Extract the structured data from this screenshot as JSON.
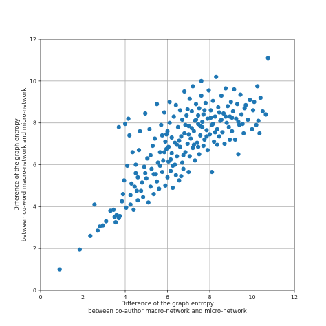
{
  "chart_data": {
    "type": "scatter",
    "xlabel": [
      "Difference of the graph entropy",
      "between co-author macro-network and micro-network"
    ],
    "ylabel": [
      "Difference of the graph entropy",
      "between co-word macro-network and micro-network"
    ],
    "xlim": [
      0,
      12
    ],
    "ylim": [
      0,
      12
    ],
    "xticks": [
      0,
      2,
      4,
      6,
      8,
      10,
      12
    ],
    "yticks": [
      0,
      2,
      4,
      6,
      8,
      10,
      12
    ],
    "grid": true,
    "point_color": "#1f77b4",
    "points": [
      [
        0.9,
        1.0
      ],
      [
        1.85,
        1.95
      ],
      [
        2.35,
        2.6
      ],
      [
        2.55,
        4.1
      ],
      [
        2.7,
        2.85
      ],
      [
        2.8,
        3.05
      ],
      [
        2.95,
        3.1
      ],
      [
        3.1,
        3.3
      ],
      [
        3.3,
        3.8
      ],
      [
        3.45,
        3.85
      ],
      [
        3.5,
        3.5
      ],
      [
        3.55,
        3.25
      ],
      [
        3.6,
        3.6
      ],
      [
        3.7,
        3.45
      ],
      [
        3.75,
        3.55
      ],
      [
        3.7,
        7.8
      ],
      [
        3.85,
        4.25
      ],
      [
        3.9,
        4.6
      ],
      [
        3.95,
        5.25
      ],
      [
        4.0,
        7.95
      ],
      [
        4.05,
        3.95
      ],
      [
        4.1,
        5.95
      ],
      [
        4.15,
        8.2
      ],
      [
        4.2,
        7.4
      ],
      [
        4.25,
        4.55
      ],
      [
        4.3,
        5.1
      ],
      [
        4.35,
        6.6
      ],
      [
        4.4,
        3.85
      ],
      [
        4.45,
        4.95
      ],
      [
        4.5,
        5.6
      ],
      [
        4.5,
        6.0
      ],
      [
        4.6,
        4.3
      ],
      [
        4.6,
        5.4
      ],
      [
        4.65,
        6.7
      ],
      [
        4.7,
        7.6
      ],
      [
        4.75,
        4.75
      ],
      [
        4.8,
        5.15
      ],
      [
        4.85,
        4.45
      ],
      [
        4.9,
        5.9
      ],
      [
        4.95,
        8.45
      ],
      [
        5.0,
        5.35
      ],
      [
        5.05,
        6.3
      ],
      [
        5.1,
        4.2
      ],
      [
        5.15,
        7.7
      ],
      [
        5.2,
        4.95
      ],
      [
        5.25,
        5.8
      ],
      [
        5.3,
        6.9
      ],
      [
        5.35,
        4.6
      ],
      [
        5.4,
        7.25
      ],
      [
        5.45,
        5.55
      ],
      [
        5.5,
        5.2
      ],
      [
        5.5,
        8.9
      ],
      [
        5.55,
        6.1
      ],
      [
        5.6,
        4.85
      ],
      [
        5.65,
        6.6
      ],
      [
        5.7,
        7.9
      ],
      [
        5.75,
        5.65
      ],
      [
        5.8,
        6.2
      ],
      [
        5.85,
        8.5
      ],
      [
        5.9,
        5.0
      ],
      [
        5.9,
        7.1
      ],
      [
        5.95,
        6.75
      ],
      [
        6.0,
        5.4
      ],
      [
        6.0,
        7.6
      ],
      [
        6.05,
        6.15
      ],
      [
        6.1,
        8.0
      ],
      [
        6.1,
        9.0
      ],
      [
        6.15,
        5.7
      ],
      [
        6.2,
        6.55
      ],
      [
        6.2,
        7.3
      ],
      [
        6.25,
        4.9
      ],
      [
        6.3,
        8.3
      ],
      [
        6.35,
        6.0
      ],
      [
        6.35,
        7.05
      ],
      [
        6.4,
        5.5
      ],
      [
        6.4,
        8.85
      ],
      [
        6.45,
        6.4
      ],
      [
        6.5,
        7.8
      ],
      [
        6.55,
        5.25
      ],
      [
        6.6,
        6.85
      ],
      [
        6.6,
        8.6
      ],
      [
        6.65,
        7.35
      ],
      [
        6.7,
        6.1
      ],
      [
        6.7,
        8.15
      ],
      [
        6.75,
        5.8
      ],
      [
        6.8,
        7.5
      ],
      [
        6.8,
        9.5
      ],
      [
        6.85,
        6.6
      ],
      [
        6.9,
        8.35
      ],
      [
        6.95,
        7.0
      ],
      [
        7.0,
        5.65
      ],
      [
        7.0,
        7.85
      ],
      [
        7.05,
        6.4
      ],
      [
        7.05,
        9.15
      ],
      [
        7.1,
        7.25
      ],
      [
        7.15,
        8.55
      ],
      [
        7.2,
        6.8
      ],
      [
        7.2,
        9.75
      ],
      [
        7.25,
        7.6
      ],
      [
        7.3,
        6.2
      ],
      [
        7.3,
        8.1
      ],
      [
        7.35,
        8.9
      ],
      [
        7.4,
        7.05
      ],
      [
        7.45,
        7.95
      ],
      [
        7.5,
        6.5
      ],
      [
        7.5,
        8.7
      ],
      [
        7.55,
        7.4
      ],
      [
        7.6,
        9.3
      ],
      [
        7.6,
        10.0
      ],
      [
        7.65,
        7.8
      ],
      [
        7.7,
        6.9
      ],
      [
        7.7,
        8.4
      ],
      [
        7.75,
        7.2
      ],
      [
        7.8,
        8.95
      ],
      [
        7.85,
        7.65
      ],
      [
        7.9,
        8.2
      ],
      [
        7.9,
        6.7
      ],
      [
        7.95,
        9.55
      ],
      [
        8.0,
        7.45
      ],
      [
        8.05,
        8.6
      ],
      [
        8.1,
        5.65
      ],
      [
        8.1,
        7.9
      ],
      [
        8.15,
        9.05
      ],
      [
        8.2,
        7.1
      ],
      [
        8.25,
        8.3
      ],
      [
        8.3,
        10.2
      ],
      [
        8.35,
        7.7
      ],
      [
        8.4,
        8.75
      ],
      [
        8.45,
        7.35
      ],
      [
        8.5,
        8.1
      ],
      [
        8.55,
        9.3
      ],
      [
        8.6,
        7.55
      ],
      [
        8.65,
        8.45
      ],
      [
        8.7,
        7.0
      ],
      [
        8.75,
        9.65
      ],
      [
        8.8,
        8.0
      ],
      [
        8.85,
        8.8
      ],
      [
        8.9,
        7.8
      ],
      [
        8.95,
        8.3
      ],
      [
        9.0,
        9.0
      ],
      [
        9.05,
        7.6
      ],
      [
        9.1,
        8.55
      ],
      [
        9.15,
        9.6
      ],
      [
        9.2,
        7.2
      ],
      [
        9.25,
        8.2
      ],
      [
        9.3,
        8.9
      ],
      [
        9.35,
        6.5
      ],
      [
        9.4,
        7.9
      ],
      [
        9.45,
        9.35
      ],
      [
        9.5,
        8.4
      ],
      [
        9.6,
        7.5
      ],
      [
        9.7,
        8.85
      ],
      [
        9.8,
        8.15
      ],
      [
        9.9,
        9.1
      ],
      [
        10.0,
        7.7
      ],
      [
        10.05,
        8.6
      ],
      [
        10.1,
        9.0
      ],
      [
        10.2,
        7.9
      ],
      [
        10.25,
        9.75
      ],
      [
        10.3,
        8.1
      ],
      [
        10.35,
        7.5
      ],
      [
        10.4,
        9.2
      ],
      [
        10.5,
        8.55
      ],
      [
        10.65,
        8.4
      ],
      [
        10.75,
        11.1
      ],
      [
        5.2,
        6.45
      ],
      [
        5.75,
        7.4
      ],
      [
        6.25,
        5.95
      ],
      [
        6.55,
        7.15
      ],
      [
        6.85,
        7.9
      ],
      [
        7.15,
        7.75
      ],
      [
        7.45,
        8.35
      ],
      [
        7.65,
        8.05
      ],
      [
        7.85,
        7.35
      ],
      [
        8.05,
        8.25
      ],
      [
        8.25,
        7.55
      ],
      [
        8.55,
        8.15
      ],
      [
        7.0,
        7.45
      ],
      [
        6.45,
        6.95
      ],
      [
        6.15,
        6.25
      ],
      [
        5.85,
        6.6
      ],
      [
        6.75,
        6.45
      ],
      [
        7.25,
        6.95
      ],
      [
        7.55,
        7.85
      ],
      [
        8.45,
        8.5
      ],
      [
        8.75,
        8.3
      ],
      [
        9.05,
        8.25
      ],
      [
        9.35,
        8.05
      ],
      [
        9.65,
        8.7
      ],
      [
        6.95,
        8.65
      ],
      [
        7.35,
        8.15
      ],
      [
        7.75,
        8.6
      ],
      [
        8.15,
        7.95
      ],
      [
        6.05,
        6.85
      ],
      [
        5.65,
        5.95
      ],
      [
        5.35,
        5.55
      ],
      [
        4.95,
        5.6
      ],
      [
        4.55,
        4.75
      ],
      [
        4.25,
        4.1
      ],
      [
        5.95,
        7.45
      ],
      [
        6.65,
        5.45
      ],
      [
        7.45,
        6.85
      ],
      [
        8.35,
        6.95
      ],
      [
        8.95,
        7.2
      ],
      [
        9.55,
        7.95
      ]
    ]
  }
}
